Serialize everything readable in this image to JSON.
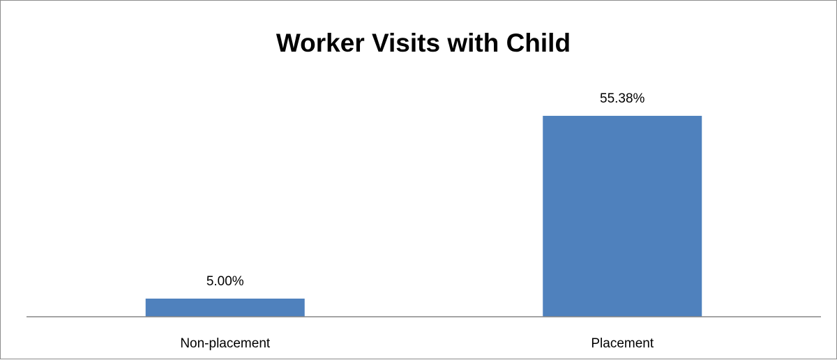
{
  "chart_data": {
    "type": "bar",
    "title": "Worker Visits with Child",
    "categories": [
      "Non-placement",
      "Placement"
    ],
    "values": [
      5.0,
      55.38
    ],
    "data_labels": [
      "5.00%",
      "55.38%"
    ],
    "xlabel": "",
    "ylabel": "",
    "ylim": [
      0,
      60
    ],
    "y_axis_visible": false,
    "grid": false,
    "legend": "none",
    "bar_color": "#4F81BD",
    "axis_color": "#868686"
  }
}
